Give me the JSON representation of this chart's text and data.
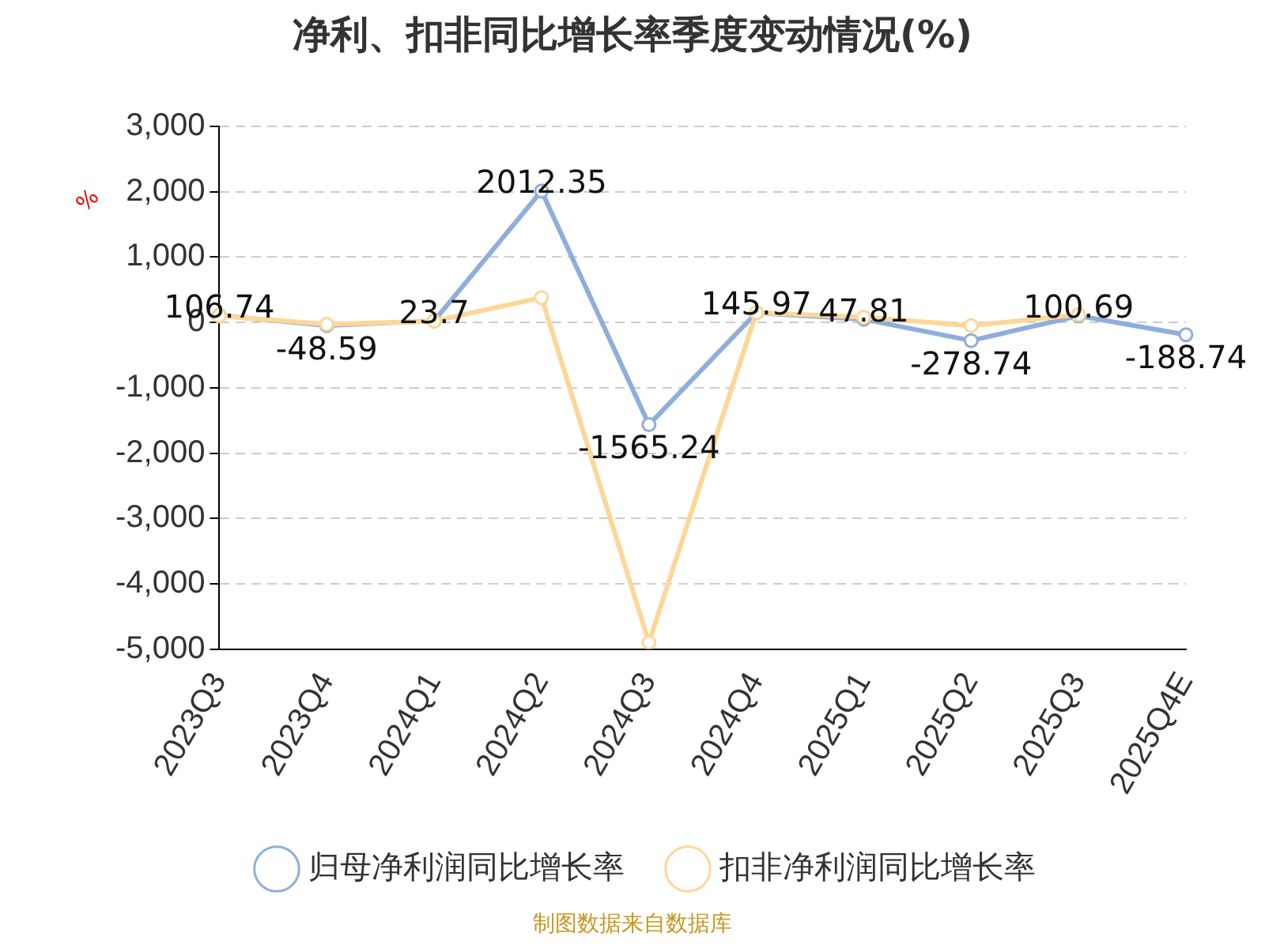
{
  "chart_data": {
    "type": "line",
    "title": "净利、扣非同比增长率季度变动情况(%)",
    "ylabel": "%",
    "categories": [
      "2023Q3",
      "2023Q4",
      "2024Q1",
      "2024Q2",
      "2024Q3",
      "2024Q4",
      "2025Q1",
      "2025Q2",
      "2025Q3",
      "2025Q4E"
    ],
    "series": [
      {
        "name": "归母净利润同比增长率",
        "color": "#8eaedc",
        "values": [
          106.74,
          -48.59,
          23.7,
          2012.35,
          -1565.24,
          145.97,
          47.81,
          -278.74,
          100.69,
          -188.74
        ],
        "value_labels": [
          "106.74",
          "-48.59",
          "23.7",
          "2012.35",
          "-1565.24",
          "145.97",
          "47.81",
          "-278.74",
          "100.69",
          "-188.74"
        ]
      },
      {
        "name": "扣非净利润同比增长率",
        "color": "#fdd797",
        "values": [
          100,
          -30,
          20,
          380,
          -4900,
          150,
          80,
          -50,
          120,
          null
        ]
      }
    ],
    "ylim": [
      -5000,
      3000
    ],
    "yticks": [
      {
        "value": -5000,
        "label": "-5,000"
      },
      {
        "value": -4000,
        "label": "-4,000"
      },
      {
        "value": -3000,
        "label": "-3,000"
      },
      {
        "value": -2000,
        "label": "-2,000"
      },
      {
        "value": -1000,
        "label": "-1,000"
      },
      0,
      {
        "value": 1000,
        "label": "1,000"
      },
      {
        "value": 2000,
        "label": "2,000"
      },
      {
        "value": 3000,
        "label": "3,000"
      }
    ],
    "grid": "y",
    "legend": "bottom",
    "marker": "circle",
    "line_style": "solid",
    "annotations": [
      "制图数据来自数据库"
    ]
  }
}
